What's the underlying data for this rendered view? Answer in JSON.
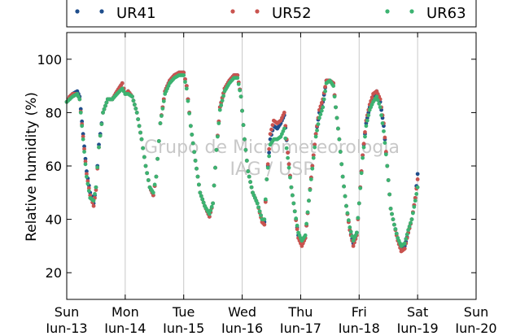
{
  "chart_data": {
    "type": "line",
    "ylabel": "Relative humidity (%)",
    "xlabel": "",
    "ylim": [
      10,
      110
    ],
    "yticks": [
      20,
      40,
      60,
      80,
      100
    ],
    "xticks": [
      {
        "day": "Sun",
        "date": "Jun-13"
      },
      {
        "day": "Mon",
        "date": "Jun-14"
      },
      {
        "day": "Tue",
        "date": "Jun-15"
      },
      {
        "day": "Wed",
        "date": "Jun-16"
      },
      {
        "day": "Thu",
        "date": "Jun-17"
      },
      {
        "day": "Fri",
        "date": "Jun-18"
      },
      {
        "day": "Sat",
        "date": "Jun-19"
      },
      {
        "day": "Sun",
        "date": "Jun-20"
      }
    ],
    "grid": "vertical",
    "legend_position": "top",
    "watermark": [
      "Grupo de Micrometeorologia",
      "IAG / USP"
    ],
    "series": [
      {
        "name": "UR41",
        "color": "#1f4e8c",
        "points": [
          [
            0.0,
            84
          ],
          [
            0.05,
            86
          ],
          [
            0.1,
            87
          ],
          [
            0.18,
            88
          ],
          [
            0.22,
            86
          ],
          [
            0.28,
            72
          ],
          [
            0.34,
            58
          ],
          [
            0.4,
            50
          ],
          [
            0.46,
            46
          ],
          [
            0.5,
            52
          ],
          [
            0.55,
            68
          ],
          [
            0.62,
            80
          ],
          [
            0.7,
            85
          ],
          [
            0.78,
            85
          ],
          [
            0.86,
            88
          ],
          [
            0.95,
            91
          ],
          [
            1.0,
            87
          ],
          [
            1.05,
            88
          ],
          [
            1.12,
            86
          ],
          [
            1.2,
            80
          ],
          [
            1.28,
            70
          ],
          [
            1.35,
            60
          ],
          [
            1.42,
            52
          ],
          [
            1.48,
            49
          ],
          [
            1.53,
            56
          ],
          [
            1.6,
            76
          ],
          [
            1.68,
            88
          ],
          [
            1.76,
            92
          ],
          [
            1.84,
            94
          ],
          [
            1.92,
            95
          ],
          [
            2.0,
            95
          ],
          [
            2.05,
            90
          ],
          [
            2.12,
            75
          ],
          [
            2.2,
            62
          ],
          [
            2.28,
            50
          ],
          [
            2.36,
            45
          ],
          [
            2.44,
            41
          ],
          [
            2.5,
            46
          ],
          [
            2.56,
            66
          ],
          [
            2.62,
            82
          ],
          [
            2.7,
            89
          ],
          [
            2.78,
            92
          ],
          [
            2.86,
            94
          ],
          [
            2.92,
            94
          ],
          [
            2.98,
            86
          ],
          [
            3.04,
            70
          ],
          [
            3.1,
            58
          ],
          [
            3.18,
            50
          ],
          [
            3.26,
            46
          ],
          [
            3.34,
            40
          ],
          [
            3.38,
            39
          ],
          [
            3.42,
            55
          ],
          [
            3.48,
            70
          ],
          [
            3.54,
            75
          ],
          [
            3.6,
            74
          ],
          [
            3.66,
            76
          ],
          [
            3.72,
            79
          ],
          [
            3.78,
            65
          ],
          [
            3.84,
            52
          ],
          [
            3.9,
            43
          ],
          [
            3.96,
            34
          ],
          [
            4.02,
            31
          ],
          [
            4.08,
            33
          ],
          [
            4.14,
            47
          ],
          [
            4.2,
            60
          ],
          [
            4.26,
            72
          ],
          [
            4.32,
            80
          ],
          [
            4.38,
            84
          ],
          [
            4.44,
            92
          ],
          [
            4.5,
            92
          ],
          [
            4.56,
            91
          ],
          [
            4.6,
            82
          ],
          [
            4.66,
            70
          ],
          [
            4.72,
            56
          ],
          [
            4.78,
            45
          ],
          [
            4.84,
            36
          ],
          [
            4.9,
            31
          ],
          [
            4.96,
            35
          ],
          [
            5.0,
            46
          ],
          [
            5.06,
            64
          ],
          [
            5.12,
            76
          ],
          [
            5.18,
            82
          ],
          [
            5.24,
            86
          ],
          [
            5.3,
            88
          ],
          [
            5.36,
            84
          ],
          [
            5.42,
            75
          ],
          [
            5.48,
            60
          ],
          [
            5.54,
            44
          ],
          [
            5.6,
            38
          ],
          [
            5.66,
            33
          ],
          [
            5.72,
            29
          ],
          [
            5.78,
            30
          ],
          [
            5.84,
            35
          ],
          [
            5.9,
            40
          ],
          [
            5.96,
            48
          ],
          [
            6.0,
            57
          ]
        ]
      },
      {
        "name": "UR52",
        "color": "#c9534f",
        "points": [
          [
            0.0,
            84
          ],
          [
            0.05,
            86
          ],
          [
            0.1,
            87
          ],
          [
            0.18,
            87
          ],
          [
            0.22,
            85
          ],
          [
            0.28,
            71
          ],
          [
            0.34,
            57
          ],
          [
            0.4,
            49
          ],
          [
            0.46,
            45
          ],
          [
            0.5,
            51
          ],
          [
            0.55,
            67
          ],
          [
            0.62,
            80
          ],
          [
            0.7,
            85
          ],
          [
            0.78,
            85
          ],
          [
            0.86,
            88
          ],
          [
            0.95,
            91
          ],
          [
            1.0,
            87
          ],
          [
            1.05,
            88
          ],
          [
            1.12,
            86
          ],
          [
            1.2,
            80
          ],
          [
            1.28,
            70
          ],
          [
            1.35,
            60
          ],
          [
            1.42,
            52
          ],
          [
            1.48,
            49
          ],
          [
            1.53,
            56
          ],
          [
            1.6,
            76
          ],
          [
            1.68,
            88
          ],
          [
            1.76,
            92
          ],
          [
            1.84,
            94
          ],
          [
            1.92,
            95
          ],
          [
            2.0,
            95
          ],
          [
            2.05,
            90
          ],
          [
            2.12,
            75
          ],
          [
            2.2,
            62
          ],
          [
            2.28,
            50
          ],
          [
            2.36,
            45
          ],
          [
            2.44,
            41
          ],
          [
            2.5,
            46
          ],
          [
            2.56,
            66
          ],
          [
            2.62,
            82
          ],
          [
            2.7,
            89
          ],
          [
            2.78,
            92
          ],
          [
            2.86,
            94
          ],
          [
            2.92,
            94
          ],
          [
            2.98,
            86
          ],
          [
            3.04,
            70
          ],
          [
            3.1,
            58
          ],
          [
            3.18,
            50
          ],
          [
            3.26,
            46
          ],
          [
            3.34,
            39
          ],
          [
            3.38,
            38
          ],
          [
            3.42,
            55
          ],
          [
            3.48,
            72
          ],
          [
            3.54,
            77
          ],
          [
            3.6,
            76
          ],
          [
            3.66,
            77
          ],
          [
            3.72,
            80
          ],
          [
            3.78,
            65
          ],
          [
            3.84,
            52
          ],
          [
            3.9,
            43
          ],
          [
            3.96,
            33
          ],
          [
            4.02,
            30
          ],
          [
            4.08,
            33
          ],
          [
            4.14,
            47
          ],
          [
            4.2,
            60
          ],
          [
            4.26,
            72
          ],
          [
            4.32,
            81
          ],
          [
            4.38,
            85
          ],
          [
            4.44,
            92
          ],
          [
            4.5,
            92
          ],
          [
            4.56,
            91
          ],
          [
            4.6,
            82
          ],
          [
            4.66,
            70
          ],
          [
            4.72,
            56
          ],
          [
            4.78,
            45
          ],
          [
            4.84,
            36
          ],
          [
            4.9,
            30
          ],
          [
            4.96,
            34
          ],
          [
            5.0,
            46
          ],
          [
            5.06,
            64
          ],
          [
            5.12,
            77
          ],
          [
            5.18,
            83
          ],
          [
            5.24,
            87
          ],
          [
            5.3,
            88
          ],
          [
            5.36,
            85
          ],
          [
            5.42,
            76
          ],
          [
            5.48,
            60
          ],
          [
            5.54,
            44
          ],
          [
            5.6,
            38
          ],
          [
            5.66,
            32
          ],
          [
            5.72,
            28
          ],
          [
            5.78,
            29
          ],
          [
            5.84,
            35
          ],
          [
            5.9,
            40
          ],
          [
            5.96,
            48
          ],
          [
            6.0,
            55
          ]
        ]
      },
      {
        "name": "UR63",
        "color": "#3cb371",
        "points": [
          [
            0.0,
            84
          ],
          [
            0.05,
            85
          ],
          [
            0.1,
            86
          ],
          [
            0.18,
            87
          ],
          [
            0.22,
            85
          ],
          [
            0.28,
            70
          ],
          [
            0.34,
            56
          ],
          [
            0.4,
            48
          ],
          [
            0.46,
            47
          ],
          [
            0.5,
            52
          ],
          [
            0.55,
            67
          ],
          [
            0.62,
            80
          ],
          [
            0.7,
            85
          ],
          [
            0.78,
            85
          ],
          [
            0.86,
            87
          ],
          [
            0.95,
            89
          ],
          [
            1.0,
            87
          ],
          [
            1.05,
            87
          ],
          [
            1.12,
            86
          ],
          [
            1.2,
            80
          ],
          [
            1.28,
            70
          ],
          [
            1.35,
            60
          ],
          [
            1.42,
            52
          ],
          [
            1.48,
            50
          ],
          [
            1.53,
            56
          ],
          [
            1.6,
            76
          ],
          [
            1.68,
            87
          ],
          [
            1.76,
            91
          ],
          [
            1.84,
            93
          ],
          [
            1.92,
            94
          ],
          [
            2.0,
            94
          ],
          [
            2.05,
            89
          ],
          [
            2.12,
            75
          ],
          [
            2.2,
            62
          ],
          [
            2.28,
            50
          ],
          [
            2.36,
            45
          ],
          [
            2.44,
            42
          ],
          [
            2.5,
            46
          ],
          [
            2.56,
            66
          ],
          [
            2.62,
            81
          ],
          [
            2.7,
            88
          ],
          [
            2.78,
            91
          ],
          [
            2.86,
            93
          ],
          [
            2.92,
            93
          ],
          [
            2.98,
            86
          ],
          [
            3.04,
            70
          ],
          [
            3.1,
            58
          ],
          [
            3.18,
            50
          ],
          [
            3.26,
            46
          ],
          [
            3.34,
            40
          ],
          [
            3.38,
            40
          ],
          [
            3.42,
            55
          ],
          [
            3.48,
            68
          ],
          [
            3.54,
            70
          ],
          [
            3.6,
            70
          ],
          [
            3.66,
            71
          ],
          [
            3.72,
            74
          ],
          [
            3.78,
            63
          ],
          [
            3.84,
            52
          ],
          [
            3.9,
            43
          ],
          [
            3.96,
            35
          ],
          [
            4.02,
            32
          ],
          [
            4.08,
            34
          ],
          [
            4.14,
            47
          ],
          [
            4.2,
            59
          ],
          [
            4.26,
            71
          ],
          [
            4.32,
            78
          ],
          [
            4.38,
            82
          ],
          [
            4.44,
            91
          ],
          [
            4.5,
            92
          ],
          [
            4.56,
            90
          ],
          [
            4.6,
            82
          ],
          [
            4.66,
            70
          ],
          [
            4.72,
            56
          ],
          [
            4.78,
            45
          ],
          [
            4.84,
            37
          ],
          [
            4.9,
            32
          ],
          [
            4.96,
            35
          ],
          [
            5.0,
            46
          ],
          [
            5.06,
            63
          ],
          [
            5.12,
            75
          ],
          [
            5.18,
            81
          ],
          [
            5.24,
            84
          ],
          [
            5.3,
            86
          ],
          [
            5.36,
            82
          ],
          [
            5.42,
            73
          ],
          [
            5.48,
            60
          ],
          [
            5.54,
            44
          ],
          [
            5.6,
            38
          ],
          [
            5.66,
            33
          ],
          [
            5.72,
            30
          ],
          [
            5.78,
            31
          ],
          [
            5.84,
            36
          ],
          [
            5.9,
            40
          ],
          [
            5.96,
            47
          ],
          [
            6.0,
            52
          ]
        ]
      }
    ]
  }
}
